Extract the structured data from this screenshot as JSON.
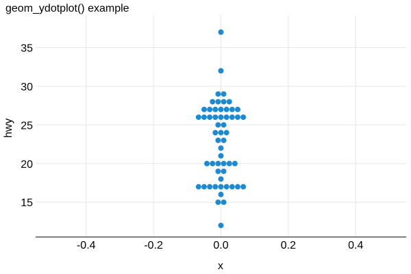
{
  "chart_data": {
    "type": "scatter",
    "subtype": "dotplot",
    "title": "geom_ydotplot() example",
    "xlabel": "x",
    "ylabel": "hwy",
    "xlim": [
      -0.55,
      0.55
    ],
    "ylim": [
      10.5,
      38.5
    ],
    "x_ticks": [
      -0.4,
      -0.2,
      0.0,
      0.2,
      0.4
    ],
    "x_tick_labels": [
      "-0.4",
      "-0.2",
      "0.0",
      "0.2",
      "0.4"
    ],
    "y_ticks": [
      15,
      20,
      25,
      30,
      35
    ],
    "y_tick_labels": [
      "15",
      "20",
      "25",
      "30",
      "35"
    ],
    "grid": true,
    "legend": "none",
    "dot_color": "#1b8ad4",
    "dot_step_x": 0.0166,
    "stacks": [
      {
        "y": 12,
        "count": 1
      },
      {
        "y": 15,
        "count": 2
      },
      {
        "y": 16,
        "count": 1
      },
      {
        "y": 17,
        "count": 9
      },
      {
        "y": 18,
        "count": 1
      },
      {
        "y": 19,
        "count": 2
      },
      {
        "y": 20,
        "count": 6
      },
      {
        "y": 21,
        "count": 1
      },
      {
        "y": 22,
        "count": 1
      },
      {
        "y": 23,
        "count": 2
      },
      {
        "y": 24,
        "count": 3
      },
      {
        "y": 25,
        "count": 2
      },
      {
        "y": 26,
        "count": 9
      },
      {
        "y": 27,
        "count": 7
      },
      {
        "y": 28,
        "count": 4
      },
      {
        "y": 29,
        "count": 2
      },
      {
        "y": 32,
        "count": 1
      },
      {
        "y": 37,
        "count": 1
      }
    ]
  }
}
